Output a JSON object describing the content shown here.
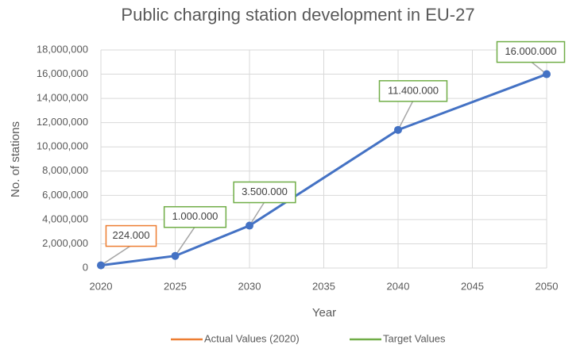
{
  "chart_data": {
    "type": "line",
    "title": "Public charging station development in EU-27",
    "x_label": "Year",
    "y_label": "No. of stations",
    "x": [
      2020,
      2025,
      2030,
      2040,
      2050
    ],
    "values": [
      224000,
      1000000,
      3500000,
      11400000,
      16000000
    ],
    "value_labels": [
      "224.000",
      "1.000.000",
      "3.500.000",
      "11.400.000",
      "16.000.000"
    ],
    "color": "#4472c4",
    "label_colors": [
      "#ed7d31",
      "#70ad47",
      "#70ad47",
      "#70ad47",
      "#70ad47"
    ],
    "legend_entries": [
      {
        "name": "Actual Values (2020)",
        "color": "#ed7d31"
      },
      {
        "name": "Target Values",
        "color": "#70ad47"
      }
    ],
    "legend": "bottom",
    "xlim": [
      2020,
      2050
    ],
    "xticks": [
      2020,
      2025,
      2030,
      2035,
      2040,
      2045,
      2050
    ],
    "ylim": [
      0,
      18000000
    ],
    "yticks": [
      0,
      {
        "value": 2000000,
        "label": "2,000,000"
      },
      {
        "value": 4000000,
        "label": "4,000,000"
      },
      {
        "value": 6000000,
        "label": "6,000,000"
      },
      {
        "value": 8000000,
        "label": "8,000,000"
      },
      {
        "value": 10000000,
        "label": "10,000,000"
      },
      {
        "value": 12000000,
        "label": "12,000,000"
      },
      {
        "value": 14000000,
        "label": "14,000,000"
      },
      {
        "value": 16000000,
        "label": "16,000,000"
      },
      {
        "value": 18000000,
        "label": "18,000,000"
      }
    ],
    "grid": true
  }
}
